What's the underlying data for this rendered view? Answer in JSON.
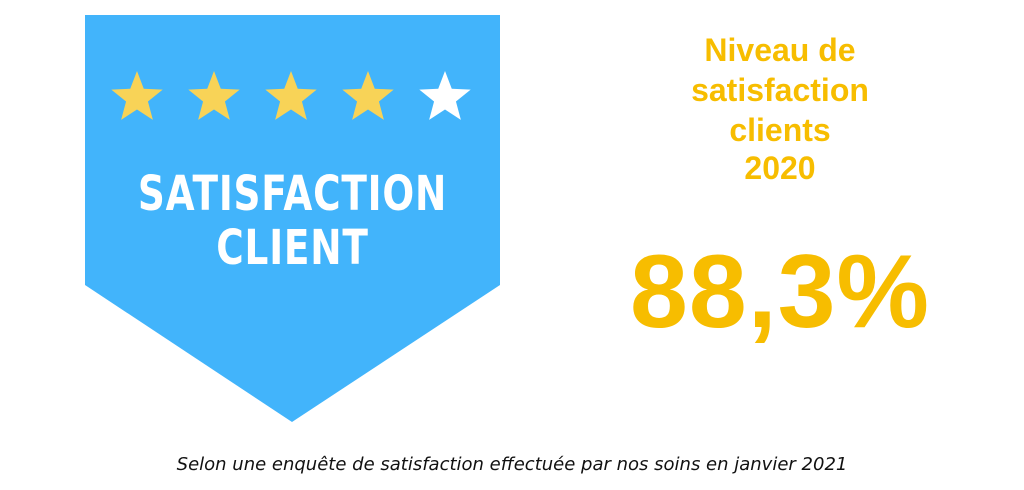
{
  "badge": {
    "title_line_1": "SATISFACTION",
    "title_line_2": "CLIENT",
    "rating": {
      "filled": 4,
      "total": 5
    },
    "colors": {
      "background": "#42b4fb",
      "star_filled": "#f8d357",
      "star_empty": "#ffffff"
    }
  },
  "heading": {
    "line_1": "Niveau de",
    "line_2": "satisfaction",
    "line_3": "clients",
    "line_4": "2020"
  },
  "value": "88,3%",
  "footnote": "Selon une enquête de satisfaction effectuée par nos soins en janvier 2021",
  "colors": {
    "accent": "#f7bd00",
    "text": "#111111"
  }
}
